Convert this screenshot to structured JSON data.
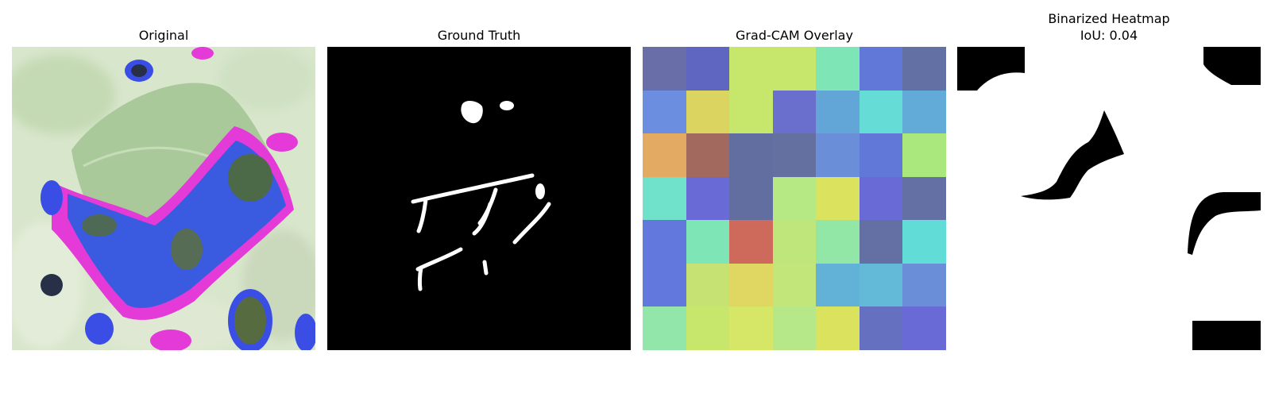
{
  "panels": {
    "original": {
      "title": "Original"
    },
    "ground_truth": {
      "title": "Ground Truth"
    },
    "gradcam": {
      "title": "Grad-CAM Overlay",
      "grid": [
        [
          "#6a6ea8",
          "#5e66c2",
          "#c6e66c",
          "#c6e66c",
          "#7ee6b6",
          "#6278d8",
          "#6270a4"
        ],
        [
          "#6c8ee0",
          "#dcd460",
          "#c6e66c",
          "#6a6ecc",
          "#62a6d8",
          "#66dcd6",
          "#62aad8"
        ],
        [
          "#e2aa62",
          "#a26a5e",
          "#626ea0",
          "#6470a0",
          "#6a8ed8",
          "#6278d8",
          "#aae87e"
        ],
        [
          "#70e2cc",
          "#6a6ad6",
          "#626ea0",
          "#b6e884",
          "#dae25e",
          "#6a6ad6",
          "#6470a4"
        ],
        [
          "#6278dc",
          "#7ee6b6",
          "#ce6a5c",
          "#bee67a",
          "#92e6a6",
          "#6470a4",
          "#62dcd6"
        ],
        [
          "#6278dc",
          "#c6e272",
          "#e0d662",
          "#c2e67a",
          "#62b2d8",
          "#62bad8",
          "#6a8ed8"
        ],
        [
          "#92e6aa",
          "#c6e66c",
          "#d6e666",
          "#b6e88a",
          "#dae25e",
          "#6670c0",
          "#6a6ad6"
        ]
      ]
    },
    "binarized": {
      "title": "Binarized Heatmap",
      "iou": "IoU: 0.04"
    }
  }
}
